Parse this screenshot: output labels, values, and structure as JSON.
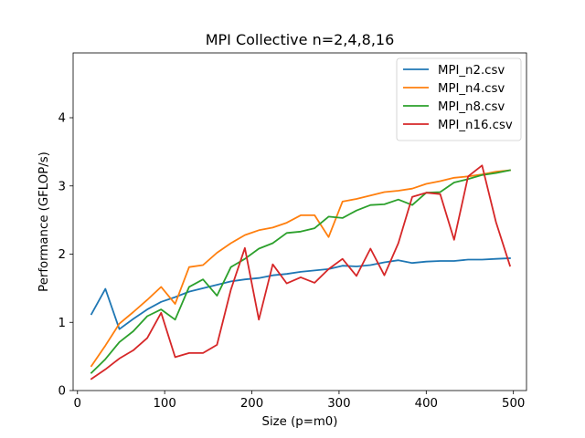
{
  "chart_data": {
    "type": "line",
    "title": "MPI Collective n=2,4,8,16",
    "xlabel": "Size (p=m0)",
    "ylabel": "Performance (GFLOP/s)",
    "xlim": [
      -5,
      515
    ],
    "ylim": [
      0,
      4.95
    ],
    "xticks": [
      0,
      100,
      200,
      300,
      400,
      500
    ],
    "yticks": [
      0,
      1,
      2,
      3,
      4
    ],
    "grid": false,
    "legend_position": "top-right",
    "x": [
      16,
      32,
      48,
      64,
      80,
      96,
      112,
      128,
      144,
      160,
      176,
      192,
      208,
      224,
      240,
      256,
      272,
      288,
      304,
      320,
      336,
      352,
      368,
      384,
      400,
      416,
      432,
      448,
      464,
      480,
      496
    ],
    "series": [
      {
        "name": "MPI_n2.csv",
        "color": "#1f77b4",
        "values": [
          1.12,
          1.49,
          0.9,
          1.05,
          1.19,
          1.3,
          1.37,
          1.45,
          1.5,
          1.55,
          1.6,
          1.63,
          1.65,
          1.69,
          1.71,
          1.74,
          1.76,
          1.78,
          1.83,
          1.82,
          1.84,
          1.88,
          1.91,
          1.87,
          1.89,
          1.9,
          1.9,
          1.92,
          1.92,
          1.93,
          1.94
        ]
      },
      {
        "name": "MPI_n4.csv",
        "color": "#ff7f0e",
        "values": [
          0.36,
          0.66,
          0.98,
          1.15,
          1.33,
          1.52,
          1.27,
          1.81,
          1.84,
          2.02,
          2.16,
          2.28,
          2.35,
          2.39,
          2.46,
          2.57,
          2.57,
          2.25,
          2.77,
          2.81,
          2.86,
          2.91,
          2.93,
          2.96,
          3.03,
          3.07,
          3.12,
          3.14,
          3.17,
          3.21,
          3.23
        ]
      },
      {
        "name": "MPI_n8.csv",
        "color": "#2ca02c",
        "values": [
          0.26,
          0.46,
          0.71,
          0.87,
          1.09,
          1.19,
          1.04,
          1.52,
          1.63,
          1.39,
          1.81,
          1.93,
          2.08,
          2.16,
          2.31,
          2.33,
          2.38,
          2.55,
          2.53,
          2.64,
          2.72,
          2.73,
          2.8,
          2.72,
          2.9,
          2.91,
          3.05,
          3.1,
          3.16,
          3.19,
          3.23
        ]
      },
      {
        "name": "MPI_n16.csv",
        "color": "#d62728",
        "values": [
          0.17,
          0.31,
          0.47,
          0.59,
          0.77,
          1.14,
          0.49,
          0.55,
          0.55,
          0.67,
          1.48,
          2.09,
          1.04,
          1.85,
          1.57,
          1.66,
          1.58,
          1.78,
          1.93,
          1.68,
          2.08,
          1.69,
          2.16,
          2.84,
          2.9,
          2.88,
          2.21,
          3.14,
          3.3,
          2.47,
          1.83
        ]
      }
    ]
  }
}
